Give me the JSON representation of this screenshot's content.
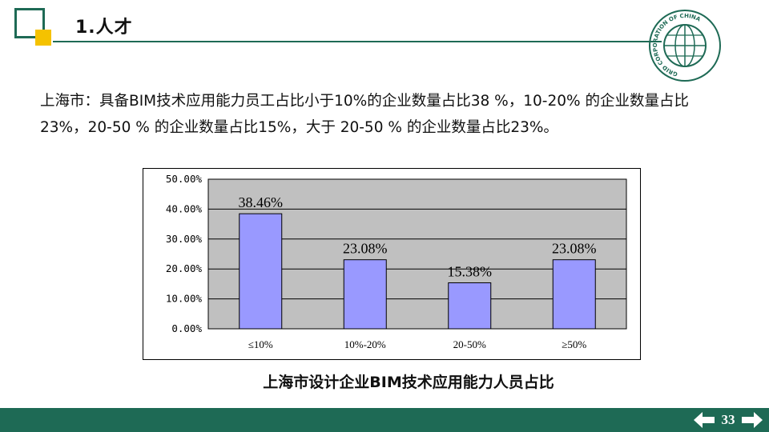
{
  "header": {
    "section_title": "1.人才",
    "logo_text": "GRID CORPORATION OF CHINA"
  },
  "paragraph": "上海市：具备BIM技术应用能力员工占比小于10%的企业数量占比38 %，10-20% 的企业数量占比23%，20-50 % 的企业数量占比15%，大于 20-50 % 的企业数量占比23%。",
  "chart_data": {
    "type": "bar",
    "title": "上海市设计企业BIM技术应用能力人员占比",
    "categories": [
      "≤10%",
      "10%-20%",
      "20-50%",
      "≥50%"
    ],
    "values": [
      38.46,
      23.08,
      15.38,
      23.08
    ],
    "value_labels": [
      "38.46%",
      "23.08%",
      "15.38%",
      "23.08%"
    ],
    "y_ticks": [
      "0.00%",
      "10.00%",
      "20.00%",
      "30.00%",
      "40.00%",
      "50.00%"
    ],
    "ylim": [
      0,
      50
    ],
    "grid": true,
    "colors": {
      "bar": "#9999ff",
      "plot_bg": "#c0c0c0",
      "frame": "#000000"
    }
  },
  "footer": {
    "page_number": "33",
    "colors": {
      "bar": "#1e6a55",
      "accent": "#f5c200"
    }
  }
}
